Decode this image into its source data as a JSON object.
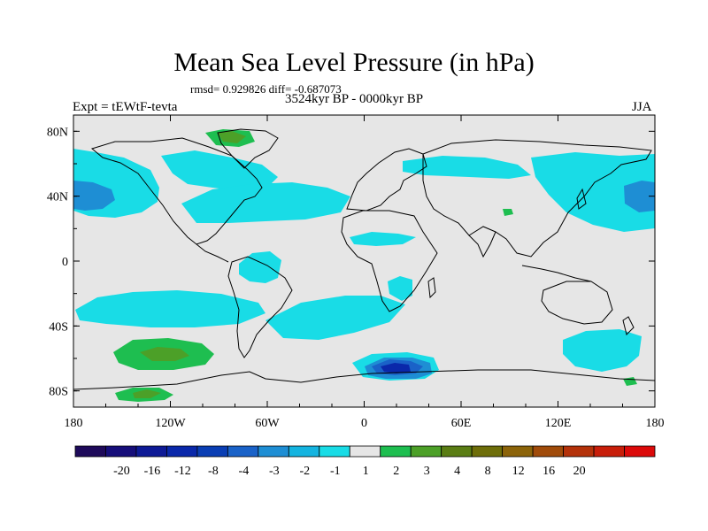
{
  "title": "Mean Sea Level Pressure (in hPa)",
  "stats": "rmsd= 0.929826 diff= -0.687073",
  "subtitle": "3524kyr BP - 0000kyr BP",
  "left_label": "Expt = tEWtF-tevta",
  "right_label": "JJA",
  "map": {
    "projection": "cylindrical equidistant",
    "lon_range": [
      -180,
      180
    ],
    "lat_range": [
      -90,
      90
    ],
    "lon_ticks": [
      {
        "value": -180,
        "label": "180"
      },
      {
        "value": -120,
        "label": "120W"
      },
      {
        "value": -60,
        "label": "60W"
      },
      {
        "value": 0,
        "label": "0"
      },
      {
        "value": 60,
        "label": "60E"
      },
      {
        "value": 120,
        "label": "120E"
      },
      {
        "value": 180,
        "label": "180"
      }
    ],
    "lat_ticks": [
      {
        "value": 80,
        "label": "80N"
      },
      {
        "value": 40,
        "label": "40N"
      },
      {
        "value": 0,
        "label": "0"
      },
      {
        "value": -40,
        "label": "40S"
      },
      {
        "value": -80,
        "label": "80S"
      }
    ],
    "background_color": "#e6e6e6"
  },
  "colorbar": {
    "colors": [
      "#1e0a5a",
      "#160e7a",
      "#0e1a96",
      "#0a28aa",
      "#0a3eb4",
      "#1a62c8",
      "#1e8ed4",
      "#14b4e0",
      "#19dce6",
      "#e6e6e6",
      "#1ebe50",
      "#4ca028",
      "#5a7d14",
      "#6e6e0a",
      "#8c640a",
      "#a04b0a",
      "#b4320a",
      "#c81e0a",
      "#dc0a0a"
    ],
    "labels": [
      "-20",
      "-16",
      "-12",
      "-8",
      "-4",
      "-3",
      "-2",
      "-1",
      "1",
      "2",
      "3",
      "4",
      "8",
      "12",
      "16",
      "20"
    ]
  }
}
